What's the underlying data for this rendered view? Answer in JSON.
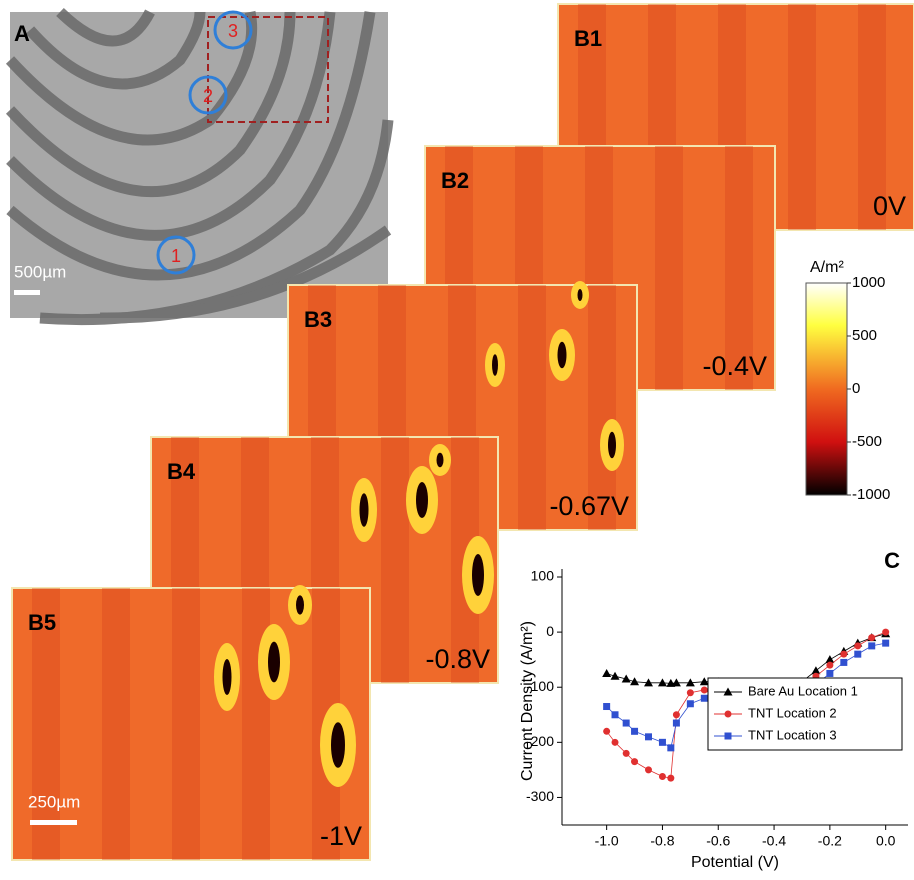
{
  "figure": {
    "panel_a": {
      "label": "A",
      "scale_bar": "500µm",
      "markers": [
        "1",
        "2",
        "3"
      ]
    },
    "panels": [
      {
        "label": "B1",
        "voltage": "0V"
      },
      {
        "label": "B2",
        "voltage": "-0.4V"
      },
      {
        "label": "B3",
        "voltage": "-0.67V"
      },
      {
        "label": "B4",
        "voltage": "-0.8V"
      },
      {
        "label": "B5",
        "voltage": "-1V",
        "scale_bar": "250µm"
      }
    ],
    "colorbar": {
      "unit": "A/m²",
      "lim": [
        -1000,
        1000
      ],
      "ticks": [
        1000,
        500,
        0,
        -500,
        -1000
      ]
    }
  },
  "chart_data": {
    "type": "line",
    "title": "C",
    "x_label": "Potential (V)",
    "y_label": "Current Density (A/m²)",
    "x": [
      -1.0,
      -0.97,
      -0.93,
      -0.9,
      -0.85,
      -0.8,
      -0.77,
      -0.75,
      -0.7,
      -0.65,
      -0.6,
      -0.55,
      -0.5,
      -0.45,
      -0.4,
      -0.35,
      -0.3,
      -0.25,
      -0.2,
      -0.15,
      -0.1,
      -0.05,
      0
    ],
    "series": [
      {
        "name": "Bare Au Location 1",
        "color": "#000000",
        "marker": "triangle",
        "values": [
          -75,
          -80,
          -85,
          -90,
          -92,
          -92,
          -93,
          -92,
          -92,
          -90,
          -90,
          -92,
          -92,
          -93,
          -93,
          -95,
          -90,
          -70,
          -50,
          -35,
          -20,
          -10,
          -3
        ]
      },
      {
        "name": "TNT Location 2",
        "color": "#e03030",
        "marker": "circle",
        "values": [
          -180,
          -200,
          -220,
          -235,
          -250,
          -262,
          -265,
          -150,
          -110,
          -105,
          -120,
          -125,
          -125,
          -115,
          -115,
          -110,
          -100,
          -80,
          -60,
          -40,
          -25,
          -10,
          0
        ]
      },
      {
        "name": "TNT Location 3",
        "color": "#3050d0",
        "marker": "square",
        "values": [
          -135,
          -150,
          -165,
          -180,
          -190,
          -200,
          -210,
          -165,
          -130,
          -120,
          -125,
          -130,
          -130,
          -130,
          -135,
          -130,
          -120,
          -95,
          -75,
          -55,
          -40,
          -25,
          -20
        ]
      }
    ],
    "xlim": [
      -1.16,
      0.08
    ],
    "xticks": [
      {
        "value": -1.0,
        "label": "-1.0"
      },
      {
        "value": -0.8,
        "label": "-0.8"
      },
      {
        "value": -0.6,
        "label": "-0.6"
      },
      {
        "value": -0.4,
        "label": "-0.4"
      },
      {
        "value": -0.2,
        "label": "-0.2"
      },
      {
        "value": 0,
        "label": "0.0"
      }
    ],
    "ylim": [
      -350,
      100
    ],
    "yticks": [
      100,
      0,
      -100,
      -200,
      -300
    ],
    "legend": "lower-right"
  }
}
